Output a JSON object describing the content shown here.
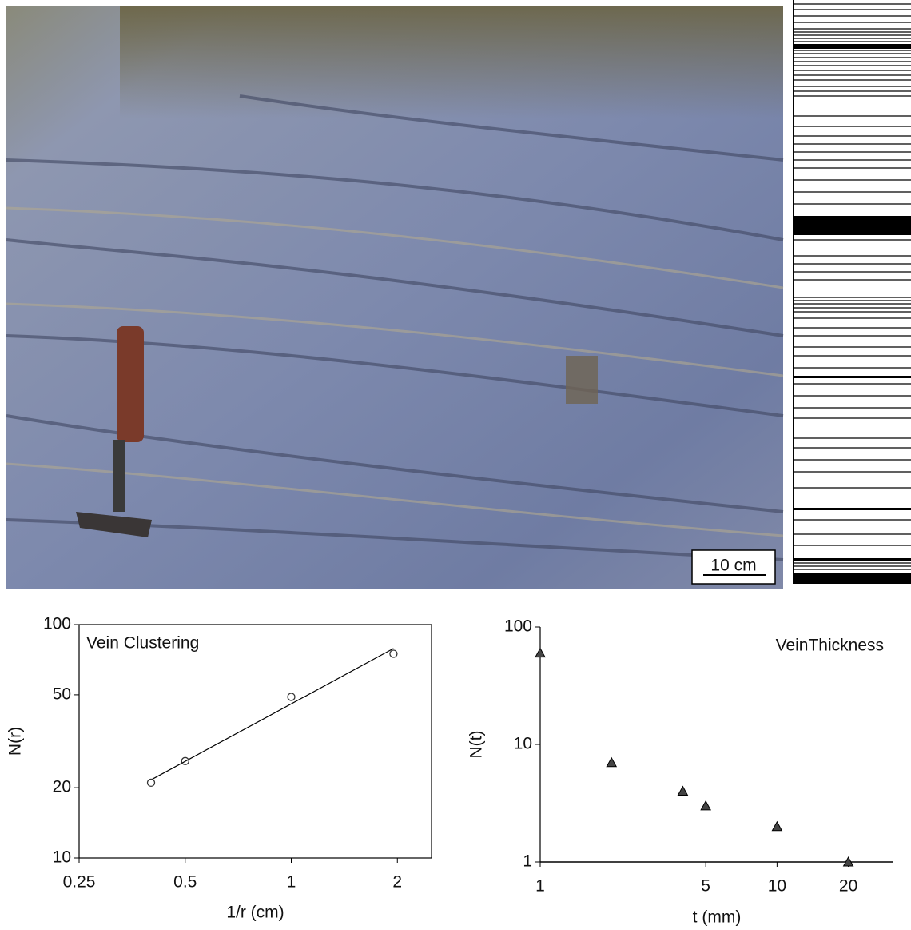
{
  "figure": {
    "scale_bar": "10 cm"
  },
  "chart_data": [
    {
      "type": "scatter",
      "title": "Vein Clustering",
      "x_label": "1/r (cm)",
      "y_label": "N(r)",
      "xscale": "log",
      "yscale": "log",
      "xlim": [
        0.25,
        2.5
      ],
      "ylim": [
        10,
        100
      ],
      "xticks": [
        0.25,
        0.5,
        1,
        2
      ],
      "yticks": [
        10,
        20,
        50,
        100
      ],
      "marker": "circle",
      "color": "#333333",
      "frame": true,
      "x": [
        0.4,
        0.5,
        1,
        1.95
      ],
      "values": [
        21,
        26,
        49,
        75
      ],
      "fit": {
        "x": [
          0.4,
          1.95
        ],
        "values": [
          21.6,
          79
        ]
      }
    },
    {
      "type": "scatter",
      "title": "VeinThickness",
      "x_label": "t (mm)",
      "y_label": "N(t)",
      "xscale": "log",
      "yscale": "log",
      "xlim": [
        1,
        31
      ],
      "ylim": [
        1,
        100
      ],
      "xticks": [
        1,
        5,
        10,
        20
      ],
      "yticks": [
        1,
        10,
        100
      ],
      "marker": "triangle",
      "color": "#444444",
      "frame": false,
      "x": [
        1,
        2,
        4,
        5,
        10,
        20
      ],
      "values": [
        60,
        7,
        4,
        3,
        2,
        1
      ]
    }
  ]
}
